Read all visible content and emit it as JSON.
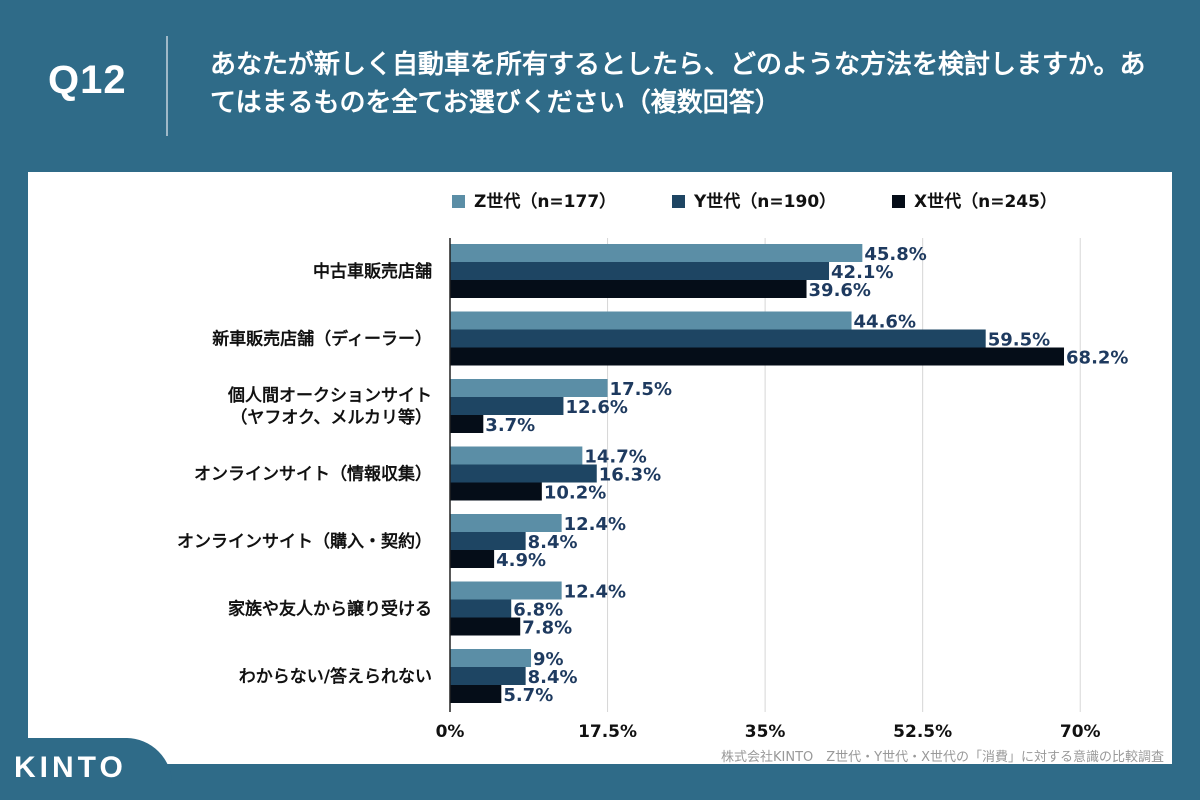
{
  "question": {
    "number": "Q12",
    "text": "あなたが新しく自動車を所有するとしたら、どのような方法を検討しますか。あてはまるものを全てお選びください（複数回答）"
  },
  "brand": {
    "logo": "KINTO"
  },
  "source": "株式会社KINTO　Z世代・Y世代・X世代の「消費」に対する意識の比較調査",
  "colors": {
    "background": "#2f6b88",
    "z": "#5b8ea6",
    "y": "#1e4563",
    "x": "#050d18",
    "label": "#1e3a5f"
  },
  "chart_data": {
    "type": "bar",
    "orientation": "horizontal",
    "categories": [
      [
        "中古車販売店舗"
      ],
      [
        "新車販売店舗（ディーラー）"
      ],
      [
        "個人間オークションサイト",
        "（ヤフオク、メルカリ等）"
      ],
      [
        "オンラインサイト（情報収集）"
      ],
      [
        "オンラインサイト（購入・契約）"
      ],
      [
        "家族や友人から譲り受ける"
      ],
      [
        "わからない/答えられない"
      ]
    ],
    "series": [
      {
        "name": "Z世代（n=177）",
        "color": "#5b8ea6",
        "values": [
          45.8,
          44.6,
          17.5,
          14.7,
          12.4,
          12.4,
          9
        ]
      },
      {
        "name": "Y世代（n=190）",
        "color": "#1e4563",
        "values": [
          42.1,
          59.5,
          12.6,
          16.3,
          8.4,
          6.8,
          8.4
        ]
      },
      {
        "name": "X世代（n=245）",
        "color": "#050d18",
        "values": [
          39.6,
          68.2,
          3.7,
          10.2,
          4.9,
          7.8,
          5.7
        ]
      }
    ],
    "xlim": [
      0,
      78.75
    ],
    "ticks": [
      "0%",
      "17.5%",
      "35%",
      "52.5%",
      "70%"
    ],
    "tick_values": [
      0,
      17.5,
      35,
      52.5,
      70
    ],
    "value_suffix": "%",
    "legend_position": "top",
    "grid": true
  }
}
